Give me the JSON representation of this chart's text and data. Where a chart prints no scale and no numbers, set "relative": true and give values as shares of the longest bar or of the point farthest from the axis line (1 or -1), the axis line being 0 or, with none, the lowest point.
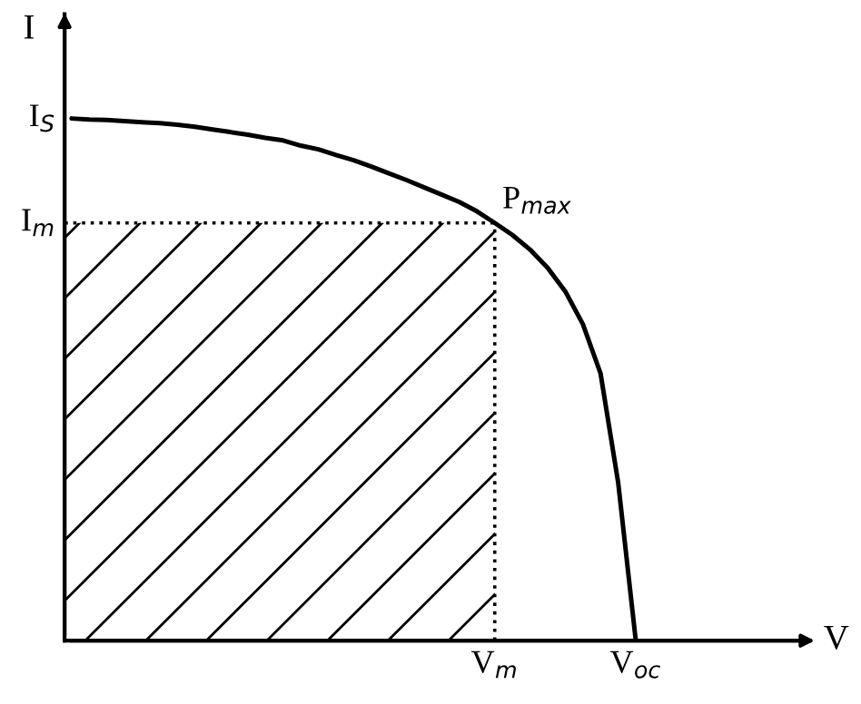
{
  "chart_data": {
    "type": "line",
    "relative": true,
    "ylabel": "I",
    "color": "#000000",
    "line_style": "solid",
    "marker": "none",
    "grid": false,
    "legend": false,
    "categories": [
      null,
      null,
      null,
      null,
      null,
      null,
      null,
      null,
      null,
      null,
      null,
      null,
      null,
      null,
      null,
      null,
      null,
      null,
      null,
      null,
      null,
      null,
      null,
      null,
      null,
      null,
      null,
      null,
      null,
      null,
      null,
      null,
      null
    ],
    "values": [
      1.0,
      0.998,
      0.997,
      0.995,
      0.993,
      0.991,
      0.988,
      0.984,
      0.979,
      0.974,
      0.969,
      0.963,
      0.958,
      0.948,
      0.941,
      0.93,
      0.92,
      0.908,
      0.895,
      0.882,
      0.868,
      0.854,
      0.84,
      0.822,
      0.8,
      0.777,
      0.749,
      0.714,
      0.669,
      0.606,
      0.512,
      0.303,
      0
    ],
    "ref_lines": [
      {
        "axis": "y",
        "value": 0.8,
        "label": "I$_{m}$",
        "line_style": "dotted",
        "color": "#000000"
      }
    ],
    "annotations": [
      "I$_{S}$",
      "P$_{max}$",
      "V$_{m}$",
      "V$_{oc}$",
      "V"
    ]
  }
}
